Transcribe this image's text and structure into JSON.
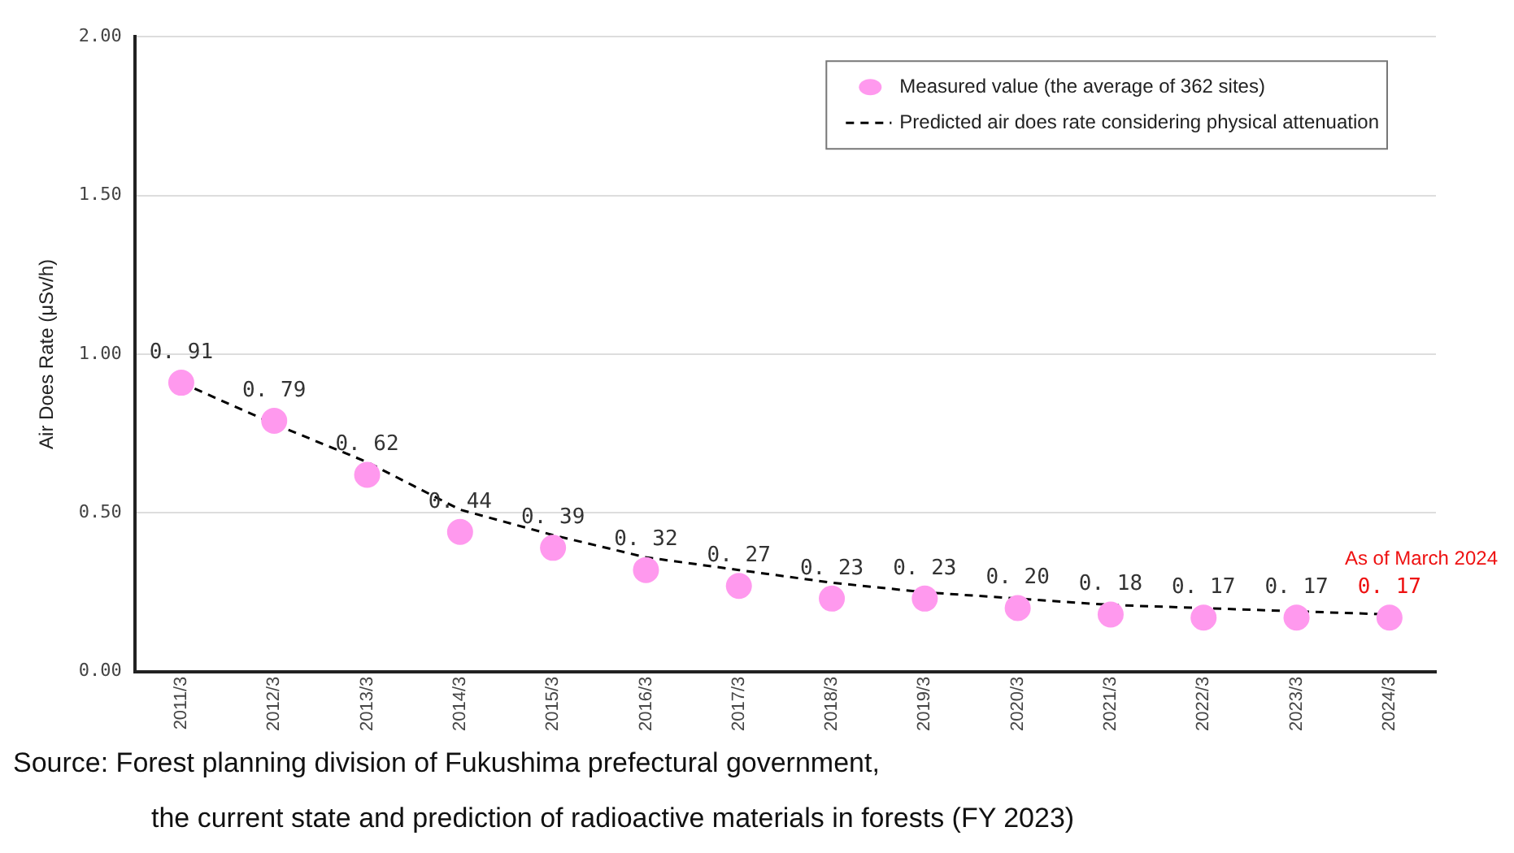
{
  "chart_data": {
    "type": "scatter",
    "ylabel": "Air Does Rate (μSv/h)",
    "categories": [
      "2011/3",
      "2012/3",
      "2013/3",
      "2014/3",
      "2015/3",
      "2016/3",
      "2017/3",
      "2018/3",
      "2019/3",
      "2020/3",
      "2021/3",
      "2022/3",
      "2023/3",
      "2024/3"
    ],
    "series": [
      {
        "name": "Measured value (the average of 362 sites)",
        "color": "#ff99ee",
        "marker": "circle",
        "values": [
          0.91,
          0.79,
          0.62,
          0.44,
          0.39,
          0.32,
          0.27,
          0.23,
          0.23,
          0.2,
          0.18,
          0.17,
          0.17,
          0.17
        ],
        "value_labels": [
          "0. 91",
          "0. 79",
          "0. 62",
          "0. 44",
          "0. 39",
          "0. 32",
          "0. 27",
          "0. 23",
          "0. 23",
          "0. 20",
          "0. 18",
          "0. 17",
          "0. 17",
          "0. 17"
        ]
      },
      {
        "name": "Predicted air does rate considering physical attenuation",
        "type": "line",
        "color": "#000000",
        "line_style": "dashed",
        "marker": "none",
        "values": [
          0.91,
          0.78,
          0.66,
          0.51,
          0.43,
          0.36,
          0.32,
          0.28,
          0.25,
          0.23,
          0.21,
          0.2,
          0.19,
          0.18
        ]
      }
    ],
    "ylim": [
      0,
      2
    ],
    "yticks": [
      {
        "value": 0,
        "label": "0.00"
      },
      {
        "value": 0.5,
        "label": "0.50"
      },
      {
        "value": 1,
        "label": "1.00"
      },
      {
        "value": 1.5,
        "label": "1.50"
      },
      {
        "value": 2,
        "label": "2.00"
      }
    ],
    "grid": "y",
    "legend": "top right",
    "annotations": [
      {
        "text": "As of March 2024",
        "x": "2024/3",
        "y": 0.17
      },
      "Source: Forest planning division of Fukushima prefectural government,\nthe current state and prediction of radioactive materials in forests (FY 2023)"
    ]
  }
}
